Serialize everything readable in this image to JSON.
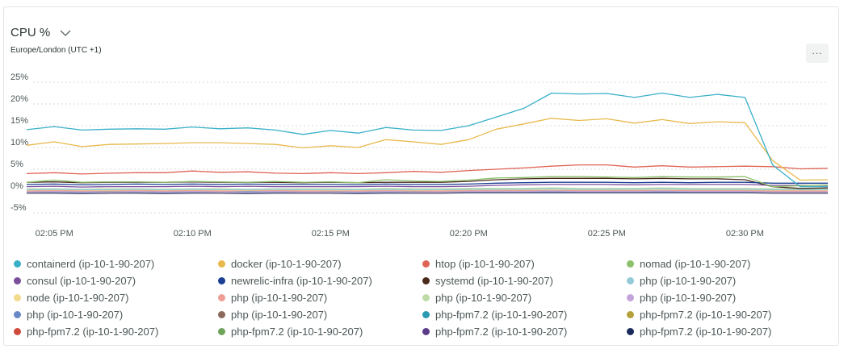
{
  "header": {
    "title": "CPU %",
    "subtitle": "Europe/London (UTC +1)",
    "more_label": "..."
  },
  "chart_data": {
    "type": "line",
    "title": "CPU %",
    "subtitle": "Europe/London (UTC +1)",
    "xlabel": "",
    "ylabel": "",
    "x_ticks": [
      "02:05 PM",
      "02:10 PM",
      "02:15 PM",
      "02:20 PM",
      "02:25 PM",
      "02:30 PM"
    ],
    "y_ticks": [
      "25%",
      "20%",
      "15%",
      "10%",
      "5%",
      "0%",
      "-5%"
    ],
    "y_tick_values": [
      25,
      20,
      15,
      10,
      5,
      0,
      -5
    ],
    "ylim": [
      -5,
      25
    ],
    "grid": true,
    "x": [
      "02:04",
      "02:05",
      "02:06",
      "02:07",
      "02:08",
      "02:09",
      "02:10",
      "02:11",
      "02:12",
      "02:13",
      "02:14",
      "02:15",
      "02:16",
      "02:17",
      "02:18",
      "02:19",
      "02:20",
      "02:21",
      "02:22",
      "02:23",
      "02:24",
      "02:25",
      "02:26",
      "02:27",
      "02:28",
      "02:29",
      "02:30",
      "02:31",
      "02:32",
      "02:33"
    ],
    "series": [
      {
        "name": "containerd (ip-10-1-90-207)",
        "color": "#39b0c8",
        "values": [
          14.1,
          14.8,
          14.0,
          14.2,
          14.3,
          14.2,
          14.7,
          14.3,
          14.5,
          14.0,
          13.0,
          13.9,
          13.3,
          14.6,
          14.0,
          13.9,
          15.0,
          17.0,
          19.0,
          22.5,
          22.3,
          22.4,
          21.5,
          22.5,
          21.5,
          22.2,
          21.5,
          6.0,
          1.0,
          1.0
        ]
      },
      {
        "name": "docker (ip-10-1-90-207)",
        "color": "#e8b94c",
        "values": [
          10.5,
          11.3,
          10.2,
          10.7,
          10.8,
          10.9,
          11.1,
          11.1,
          10.9,
          10.7,
          9.9,
          10.4,
          10.0,
          11.8,
          11.3,
          10.7,
          11.8,
          14.2,
          15.4,
          16.7,
          16.2,
          16.6,
          15.6,
          16.4,
          15.5,
          15.9,
          15.7,
          7.0,
          2.5,
          2.6
        ]
      },
      {
        "name": "htop (ip-10-1-90-207)",
        "color": "#df6456",
        "values": [
          4.0,
          4.2,
          3.9,
          4.1,
          4.2,
          4.2,
          4.6,
          4.3,
          4.4,
          4.1,
          4.0,
          4.2,
          4.0,
          4.2,
          4.5,
          4.3,
          4.7,
          5.0,
          5.3,
          5.7,
          6.0,
          6.0,
          5.5,
          5.8,
          5.5,
          5.6,
          5.7,
          5.6,
          5.1,
          5.2
        ]
      },
      {
        "name": "nomad (ip-10-1-90-207)",
        "color": "#8dc06b",
        "values": [
          2.0,
          2.5,
          2.0,
          2.1,
          2.1,
          2.0,
          2.2,
          2.1,
          2.0,
          2.2,
          2.0,
          2.1,
          1.9,
          2.6,
          2.3,
          2.2,
          2.5,
          3.0,
          3.1,
          3.3,
          3.3,
          3.2,
          3.1,
          3.3,
          3.2,
          3.2,
          3.3,
          1.0,
          1.2,
          1.4
        ]
      },
      {
        "name": "consul (ip-10-1-90-207)",
        "color": "#7b4f9c",
        "values": [
          1.0,
          1.1,
          0.9,
          1.0,
          1.0,
          1.0,
          1.1,
          1.0,
          1.1,
          1.0,
          1.0,
          1.0,
          1.0,
          1.1,
          1.0,
          1.0,
          1.1,
          1.3,
          1.4,
          1.5,
          1.5,
          1.5,
          1.4,
          1.5,
          1.5,
          1.5,
          1.5,
          1.3,
          1.3,
          1.3
        ]
      },
      {
        "name": "newrelic-infra (ip-10-1-90-207)",
        "color": "#1c3f94",
        "values": [
          1.5,
          1.6,
          1.4,
          1.5,
          1.6,
          1.5,
          1.6,
          1.5,
          1.6,
          1.5,
          1.5,
          1.5,
          1.4,
          1.6,
          1.5,
          1.5,
          1.6,
          1.8,
          1.9,
          2.0,
          2.0,
          2.0,
          1.9,
          2.0,
          1.9,
          2.0,
          2.0,
          1.8,
          1.8,
          1.8
        ]
      },
      {
        "name": "systemd (ip-10-1-90-207)",
        "color": "#4a2a1c",
        "values": [
          2.0,
          2.1,
          1.9,
          2.0,
          2.0,
          2.0,
          2.1,
          2.0,
          2.0,
          2.0,
          1.9,
          2.0,
          1.9,
          2.0,
          2.0,
          2.0,
          2.2,
          2.6,
          2.8,
          2.9,
          2.9,
          2.9,
          2.8,
          2.9,
          2.8,
          2.8,
          2.6,
          1.0,
          0.6,
          0.7
        ]
      },
      {
        "name": "php (ip-10-1-90-207)",
        "color": "#93cbd9",
        "values": [
          0.3,
          0.4,
          0.3,
          0.3,
          0.4,
          0.3,
          0.4,
          0.3,
          0.3,
          0.4,
          0.3,
          0.3,
          0.3,
          0.4,
          0.3,
          0.3,
          0.4,
          0.4,
          0.4,
          0.5,
          0.4,
          0.4,
          0.4,
          0.5,
          0.4,
          0.4,
          0.4,
          0.3,
          0.3,
          0.3
        ]
      },
      {
        "name": "node (ip-10-1-90-207)",
        "color": "#f3db8e",
        "values": [
          0.2,
          0.3,
          0.2,
          0.2,
          0.3,
          0.2,
          0.3,
          0.2,
          0.2,
          0.3,
          0.2,
          0.2,
          0.2,
          0.3,
          0.2,
          0.2,
          0.3,
          0.3,
          0.3,
          0.3,
          0.3,
          0.3,
          0.3,
          0.3,
          0.3,
          0.3,
          0.3,
          0.2,
          0.2,
          0.2
        ]
      },
      {
        "name": "php (ip-10-1-90-207)",
        "color": "#ee9e94",
        "values": [
          0.0,
          0.1,
          0.0,
          0.1,
          0.1,
          0.0,
          0.1,
          0.0,
          0.1,
          0.1,
          0.0,
          0.1,
          0.0,
          0.1,
          0.1,
          0.0,
          0.1,
          0.1,
          0.1,
          0.2,
          0.1,
          0.1,
          0.1,
          0.2,
          0.1,
          0.1,
          0.1,
          0.0,
          0.0,
          0.0
        ]
      },
      {
        "name": "php (ip-10-1-90-207)",
        "color": "#bfdba6",
        "values": [
          0.5,
          0.5,
          0.4,
          0.5,
          0.5,
          0.4,
          0.5,
          0.5,
          0.4,
          0.5,
          0.5,
          0.5,
          0.4,
          0.6,
          0.5,
          0.5,
          0.6,
          0.6,
          0.6,
          0.7,
          0.6,
          0.6,
          0.6,
          0.7,
          0.6,
          0.6,
          0.6,
          0.5,
          0.5,
          0.5
        ]
      },
      {
        "name": "php (ip-10-1-90-207)",
        "color": "#c3a3d9",
        "values": [
          -0.2,
          -0.1,
          -0.2,
          -0.2,
          -0.1,
          -0.2,
          -0.1,
          -0.2,
          -0.2,
          -0.1,
          -0.2,
          -0.2,
          -0.2,
          -0.1,
          -0.2,
          -0.2,
          -0.1,
          -0.1,
          -0.1,
          0.0,
          -0.1,
          -0.1,
          -0.1,
          0.0,
          -0.1,
          -0.1,
          -0.1,
          -0.2,
          -0.2,
          -0.2
        ]
      },
      {
        "name": "php (ip-10-1-90-207)",
        "color": "#6a88c6",
        "values": [
          -0.3,
          -0.3,
          -0.4,
          -0.3,
          -0.3,
          -0.4,
          -0.3,
          -0.3,
          -0.4,
          -0.3,
          -0.3,
          -0.3,
          -0.4,
          -0.3,
          -0.3,
          -0.3,
          -0.2,
          -0.2,
          -0.2,
          -0.2,
          -0.2,
          -0.2,
          -0.2,
          -0.2,
          -0.2,
          -0.2,
          -0.2,
          -0.3,
          -0.3,
          -0.3
        ]
      },
      {
        "name": "php (ip-10-1-90-207)",
        "color": "#8a6a5c",
        "values": [
          -0.4,
          -0.4,
          -0.5,
          -0.4,
          -0.4,
          -0.5,
          -0.4,
          -0.4,
          -0.5,
          -0.4,
          -0.4,
          -0.4,
          -0.5,
          -0.4,
          -0.4,
          -0.4,
          -0.3,
          -0.3,
          -0.3,
          -0.3,
          -0.3,
          -0.3,
          -0.3,
          -0.3,
          -0.3,
          -0.3,
          -0.3,
          -0.4,
          -0.4,
          -0.4
        ]
      },
      {
        "name": "php-fpm7.2 (ip-10-1-90-207)",
        "color": "#2a9ab0",
        "values": [
          0.1,
          0.1,
          0.0,
          0.1,
          0.1,
          0.0,
          0.1,
          0.1,
          0.0,
          0.1,
          0.1,
          0.1,
          0.0,
          0.1,
          0.1,
          0.1,
          0.2,
          0.2,
          0.2,
          0.3,
          0.2,
          0.2,
          0.2,
          0.3,
          0.2,
          0.2,
          0.2,
          0.1,
          0.1,
          0.1
        ]
      },
      {
        "name": "php-fpm7.2 (ip-10-1-90-207)",
        "color": "#b5a13a",
        "values": [
          -0.1,
          0.0,
          -0.1,
          -0.1,
          0.0,
          -0.1,
          0.0,
          -0.1,
          -0.1,
          0.0,
          -0.1,
          -0.1,
          -0.1,
          0.0,
          -0.1,
          -0.1,
          0.0,
          0.0,
          0.0,
          0.1,
          0.0,
          0.0,
          0.0,
          0.1,
          0.0,
          0.0,
          0.0,
          -0.1,
          -0.1,
          -0.1
        ]
      },
      {
        "name": "php-fpm7.2 (ip-10-1-90-207)",
        "color": "#d14b3c",
        "values": [
          0.0,
          0.0,
          -0.1,
          0.0,
          0.0,
          -0.1,
          0.0,
          0.0,
          -0.1,
          0.0,
          0.0,
          0.0,
          -0.1,
          0.0,
          0.0,
          0.0,
          0.1,
          0.1,
          0.1,
          0.1,
          0.1,
          0.1,
          0.1,
          0.1,
          0.1,
          0.1,
          0.1,
          0.0,
          0.0,
          0.0
        ]
      },
      {
        "name": "php-fpm7.2 (ip-10-1-90-207)",
        "color": "#6fa35a",
        "values": [
          0.2,
          0.2,
          0.1,
          0.2,
          0.2,
          0.1,
          0.2,
          0.2,
          0.1,
          0.2,
          0.2,
          0.2,
          0.1,
          0.2,
          0.2,
          0.2,
          0.3,
          0.3,
          0.3,
          0.3,
          0.3,
          0.3,
          0.3,
          0.3,
          0.3,
          0.3,
          0.3,
          0.2,
          0.2,
          0.2
        ]
      },
      {
        "name": "php-fpm7.2 (ip-10-1-90-207)",
        "color": "#5b3a8a",
        "values": [
          0.4,
          0.4,
          0.3,
          0.4,
          0.4,
          0.3,
          0.4,
          0.4,
          0.3,
          0.4,
          0.4,
          0.4,
          0.3,
          0.4,
          0.4,
          0.4,
          0.5,
          0.5,
          0.5,
          0.5,
          0.5,
          0.5,
          0.5,
          0.5,
          0.5,
          0.5,
          0.5,
          0.4,
          0.4,
          0.4
        ]
      },
      {
        "name": "php-fpm7.2 (ip-10-1-90-207)",
        "color": "#1b2a5c",
        "values": [
          -0.5,
          -0.5,
          -0.6,
          -0.5,
          -0.5,
          -0.6,
          -0.5,
          -0.5,
          -0.6,
          -0.5,
          -0.5,
          -0.5,
          -0.6,
          -0.5,
          -0.5,
          -0.5,
          -0.4,
          -0.4,
          -0.4,
          -0.4,
          -0.4,
          -0.4,
          -0.4,
          -0.4,
          -0.4,
          -0.4,
          -0.4,
          -0.5,
          -0.5,
          -0.5
        ]
      }
    ]
  }
}
